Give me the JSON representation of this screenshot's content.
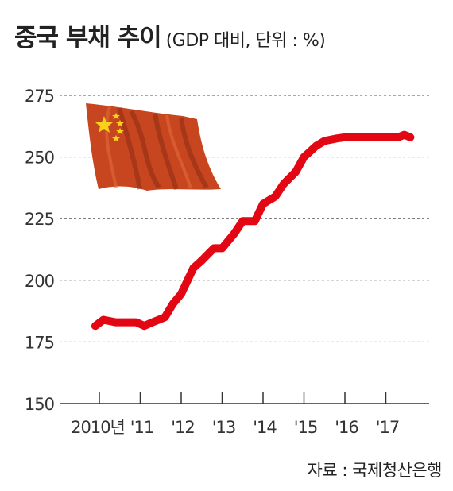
{
  "title": "중국 부채 추이",
  "subtitle": "(GDP 대비, 단위 : %)",
  "source": "자료 : 국제청산은행",
  "colors": {
    "line": "#e30613",
    "grid": "#555555",
    "flag_red": "#c8461f",
    "flag_star": "#f7d21a"
  },
  "chart_data": {
    "type": "line",
    "title": "중국 부채 추이",
    "subtitle": "(GDP 대비, 단위 : %)",
    "xlabel": "",
    "ylabel": "",
    "x_tick_labels": [
      "2010년",
      "'11",
      "'12",
      "'13",
      "'14",
      "'15",
      "'16",
      "'17"
    ],
    "xlim": [
      2009.5,
      2017.8
    ],
    "ylim": [
      150,
      275
    ],
    "y_ticks": [
      275,
      250,
      225,
      200,
      175,
      150
    ],
    "grid": "horizontal dashed",
    "series": [
      {
        "x": [
          2009.9,
          2010.1,
          2010.4,
          2010.6,
          2010.9,
          2011.1,
          2011.3,
          2011.6,
          2011.8,
          2012.0,
          2012.3,
          2012.5,
          2012.8,
          2013.0,
          2013.3,
          2013.5,
          2013.8,
          2014.0,
          2014.3,
          2014.5,
          2014.8,
          2015.0,
          2015.3,
          2015.5,
          2015.8,
          2016.0,
          2016.3,
          2016.5,
          2016.8,
          2017.0,
          2017.3,
          2017.45,
          2017.6
        ],
        "y": [
          181.5,
          184,
          183,
          183,
          183,
          181.5,
          183,
          185,
          190.5,
          194.5,
          205,
          208,
          213,
          213,
          219,
          224,
          224,
          231,
          234,
          239,
          244,
          250,
          254.5,
          256.5,
          257.5,
          258,
          258,
          258,
          258,
          258,
          258,
          259,
          258
        ]
      }
    ]
  }
}
